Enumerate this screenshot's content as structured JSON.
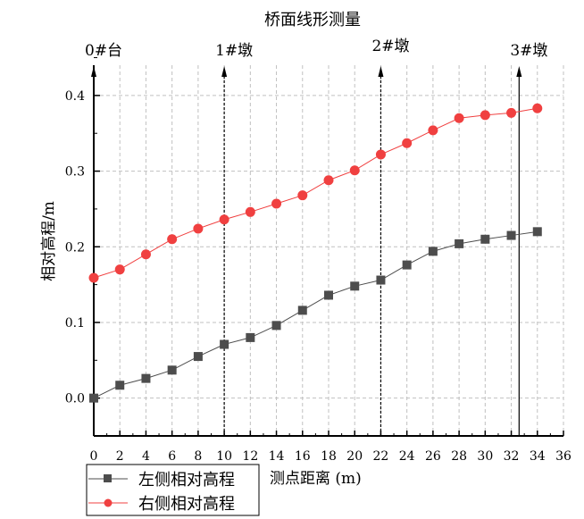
{
  "chart_data": {
    "type": "line",
    "title": "桥面线形测量",
    "xlabel": "测点距离 (m)",
    "ylabel": "相对高程/m",
    "xlim": [
      0,
      36
    ],
    "ylim": [
      -0.05,
      0.44
    ],
    "xticks": [
      0,
      2,
      4,
      6,
      8,
      10,
      12,
      14,
      16,
      18,
      20,
      22,
      24,
      26,
      28,
      30,
      32,
      34,
      36
    ],
    "yticks": [
      0.0,
      0.1,
      0.2,
      0.3,
      0.4
    ],
    "ytick_labels": [
      "0.0",
      "0.1",
      "0.2",
      "0.3",
      "0.4"
    ],
    "grid": true,
    "legend_position": "bottom-left",
    "x": [
      0,
      2,
      4,
      6,
      8,
      10,
      12,
      14,
      16,
      18,
      20,
      22,
      24,
      26,
      28,
      30,
      32,
      34
    ],
    "series": [
      {
        "name": "左侧相对高程",
        "color": "#4d4d4d",
        "marker": "square",
        "values": [
          0.0,
          0.017,
          0.026,
          0.037,
          0.055,
          0.071,
          0.08,
          0.096,
          0.116,
          0.136,
          0.148,
          0.156,
          0.176,
          0.194,
          0.204,
          0.21,
          0.215,
          0.22
        ]
      },
      {
        "name": "右侧相对高程",
        "color": "#f04040",
        "marker": "circle",
        "values": [
          0.159,
          0.17,
          0.19,
          0.21,
          0.224,
          0.236,
          0.246,
          0.257,
          0.268,
          0.288,
          0.301,
          0.322,
          0.337,
          0.354,
          0.37,
          0.374,
          0.377,
          0.383
        ]
      }
    ],
    "annotations": [
      {
        "label": "0#台",
        "x": 0,
        "style": "solid"
      },
      {
        "label": "1#墩",
        "x": 10,
        "style": "dashed"
      },
      {
        "label": "2#墩",
        "x": 22,
        "style": "dashed"
      },
      {
        "label": "3#墩",
        "x": 32.6,
        "style": "solid"
      }
    ]
  }
}
